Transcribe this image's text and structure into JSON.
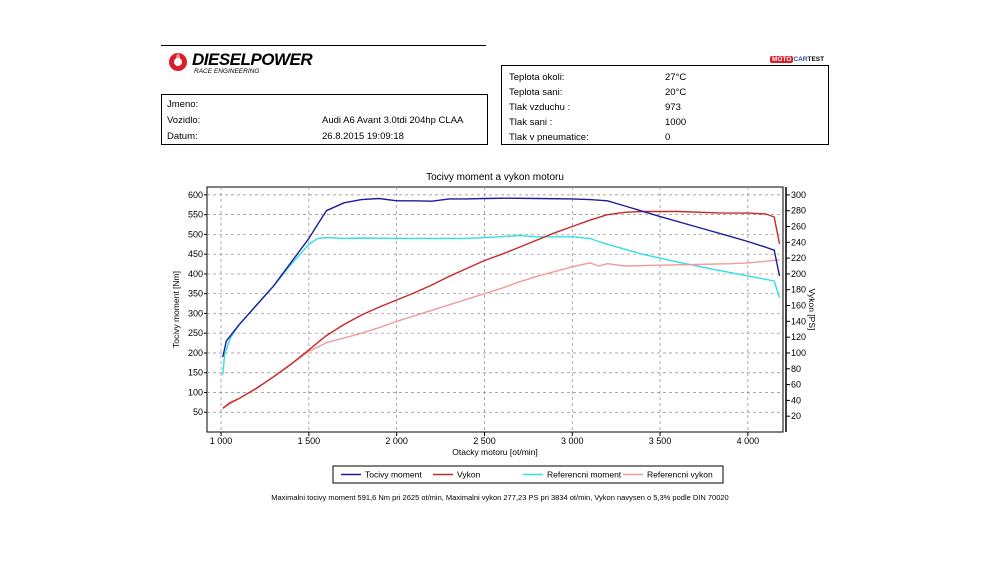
{
  "header": {
    "logo_name": "DIESELPOWER",
    "logo_sub": "RACE ENGINEERING",
    "brand_tag_left": "MOTO",
    "brand_tag_mid": "CAR",
    "brand_tag_right": "TEST"
  },
  "vehicle_info": {
    "jmeno_label": "Jmeno:",
    "jmeno_value": "",
    "vozidlo_label": "Vozidlo:",
    "vozidlo_value": "Audi A6 Avant 3.0tdi 204hp CLAA",
    "datum_label": "Datum:",
    "datum_value": "26.8.2015 19:09:18"
  },
  "conditions": {
    "teplota_okoli_label": "Teplota okoli:",
    "teplota_okoli_value": "27°C",
    "teplota_sani_label": "Teplota sani:",
    "teplota_sani_value": "20°C",
    "tlak_vzduchu_label": "Tlak vzduchu :",
    "tlak_vzduchu_value": "973",
    "tlak_sani_label": "Tlak sani :",
    "tlak_sani_value": "1000",
    "tlak_pneu_label": "Tlak v pneumatice:",
    "tlak_pneu_value": "0"
  },
  "footnote": "Maximalni tocivy moment 591,6 Nm pri 2625 ot/min,  Maximalni vykon 277,23 PS pri 3834 ot/min,  Vykon navysen o 5,3% podle DIN 70020",
  "chart_data": {
    "type": "line",
    "title": "Tocivy moment a vykon motoru",
    "xlabel": "Otacky motoru [ot/min]",
    "ylabel_left": "Tocivy moment [Nm]",
    "ylabel_right": "Vykon [PS]",
    "xlim": [
      920,
      4200
    ],
    "ylim_left": [
      0,
      620
    ],
    "ylim_right": [
      0,
      310
    ],
    "x_ticks": [
      1000,
      1500,
      2000,
      2500,
      3000,
      3500,
      4000
    ],
    "x_tick_labels": [
      "1 000",
      "1 500",
      "2 000",
      "2 500",
      "3 000",
      "3 500",
      "4 000"
    ],
    "y_left_ticks": [
      50,
      100,
      150,
      200,
      250,
      300,
      350,
      400,
      450,
      500,
      550,
      600
    ],
    "y_right_ticks": [
      20,
      40,
      60,
      80,
      100,
      120,
      140,
      160,
      180,
      200,
      220,
      240,
      260,
      280,
      300
    ],
    "grid": true,
    "legend_position": "bottom",
    "series": [
      {
        "name": "Tocivy moment",
        "axis": "left",
        "color": "#1c1ca0",
        "x": [
          1010,
          1030,
          1100,
          1200,
          1300,
          1400,
          1500,
          1550,
          1600,
          1700,
          1800,
          1900,
          2000,
          2100,
          2200,
          2300,
          2400,
          2500,
          2625,
          2800,
          3000,
          3100,
          3200,
          3300,
          3500,
          3700,
          3900,
          4000,
          4100,
          4150,
          4180
        ],
        "values": [
          190,
          230,
          270,
          320,
          370,
          430,
          490,
          525,
          560,
          580,
          588,
          591,
          585,
          585,
          584,
          590,
          590,
          591,
          591.6,
          591,
          590,
          588,
          585,
          572,
          545,
          520,
          495,
          482,
          468,
          460,
          395
        ]
      },
      {
        "name": "Vykon",
        "axis": "right",
        "color": "#c82828",
        "x": [
          1010,
          1050,
          1100,
          1200,
          1300,
          1400,
          1500,
          1600,
          1700,
          1800,
          1900,
          2000,
          2100,
          2200,
          2300,
          2400,
          2500,
          2600,
          2700,
          2800,
          2900,
          3000,
          3100,
          3200,
          3300,
          3400,
          3600,
          3834,
          4000,
          4100,
          4150,
          4180
        ],
        "values": [
          30,
          37,
          42,
          55,
          70,
          86,
          104,
          122,
          136,
          148,
          158,
          167,
          176,
          186,
          197,
          207,
          217,
          225,
          234,
          243,
          252,
          260,
          268,
          275,
          278,
          279,
          279,
          277.2,
          277,
          276,
          272,
          238
        ]
      },
      {
        "name": "Referencni moment",
        "axis": "left",
        "color": "#2ee0e6",
        "x": [
          1010,
          1020,
          1050,
          1100,
          1200,
          1300,
          1400,
          1500,
          1550,
          1600,
          1700,
          1800,
          2000,
          2200,
          2400,
          2500,
          2700,
          2800,
          3000,
          3100,
          3150,
          3200,
          3400,
          3600,
          3800,
          4000,
          4150,
          4180
        ],
        "values": [
          145,
          195,
          235,
          270,
          320,
          370,
          425,
          475,
          490,
          492,
          490,
          491,
          490,
          490,
          490,
          492,
          497,
          494,
          494,
          490,
          482,
          475,
          450,
          430,
          412,
          395,
          382,
          340
        ]
      },
      {
        "name": "Referencni vykon",
        "axis": "right",
        "color": "#f09a9a",
        "x": [
          1010,
          1100,
          1200,
          1300,
          1400,
          1500,
          1600,
          1700,
          1800,
          1900,
          2000,
          2100,
          2200,
          2300,
          2400,
          2500,
          2600,
          2700,
          2800,
          2900,
          3000,
          3100,
          3150,
          3200,
          3300,
          3500,
          3700,
          3900,
          4000,
          4100,
          4180
        ],
        "values": [
          30,
          42,
          55,
          70,
          86,
          102,
          113,
          119,
          125,
          132,
          140,
          147,
          154,
          161,
          168,
          175,
          182,
          190,
          197,
          203,
          209,
          214,
          210,
          213,
          210,
          211,
          212,
          213,
          214,
          216,
          218
        ]
      }
    ]
  }
}
